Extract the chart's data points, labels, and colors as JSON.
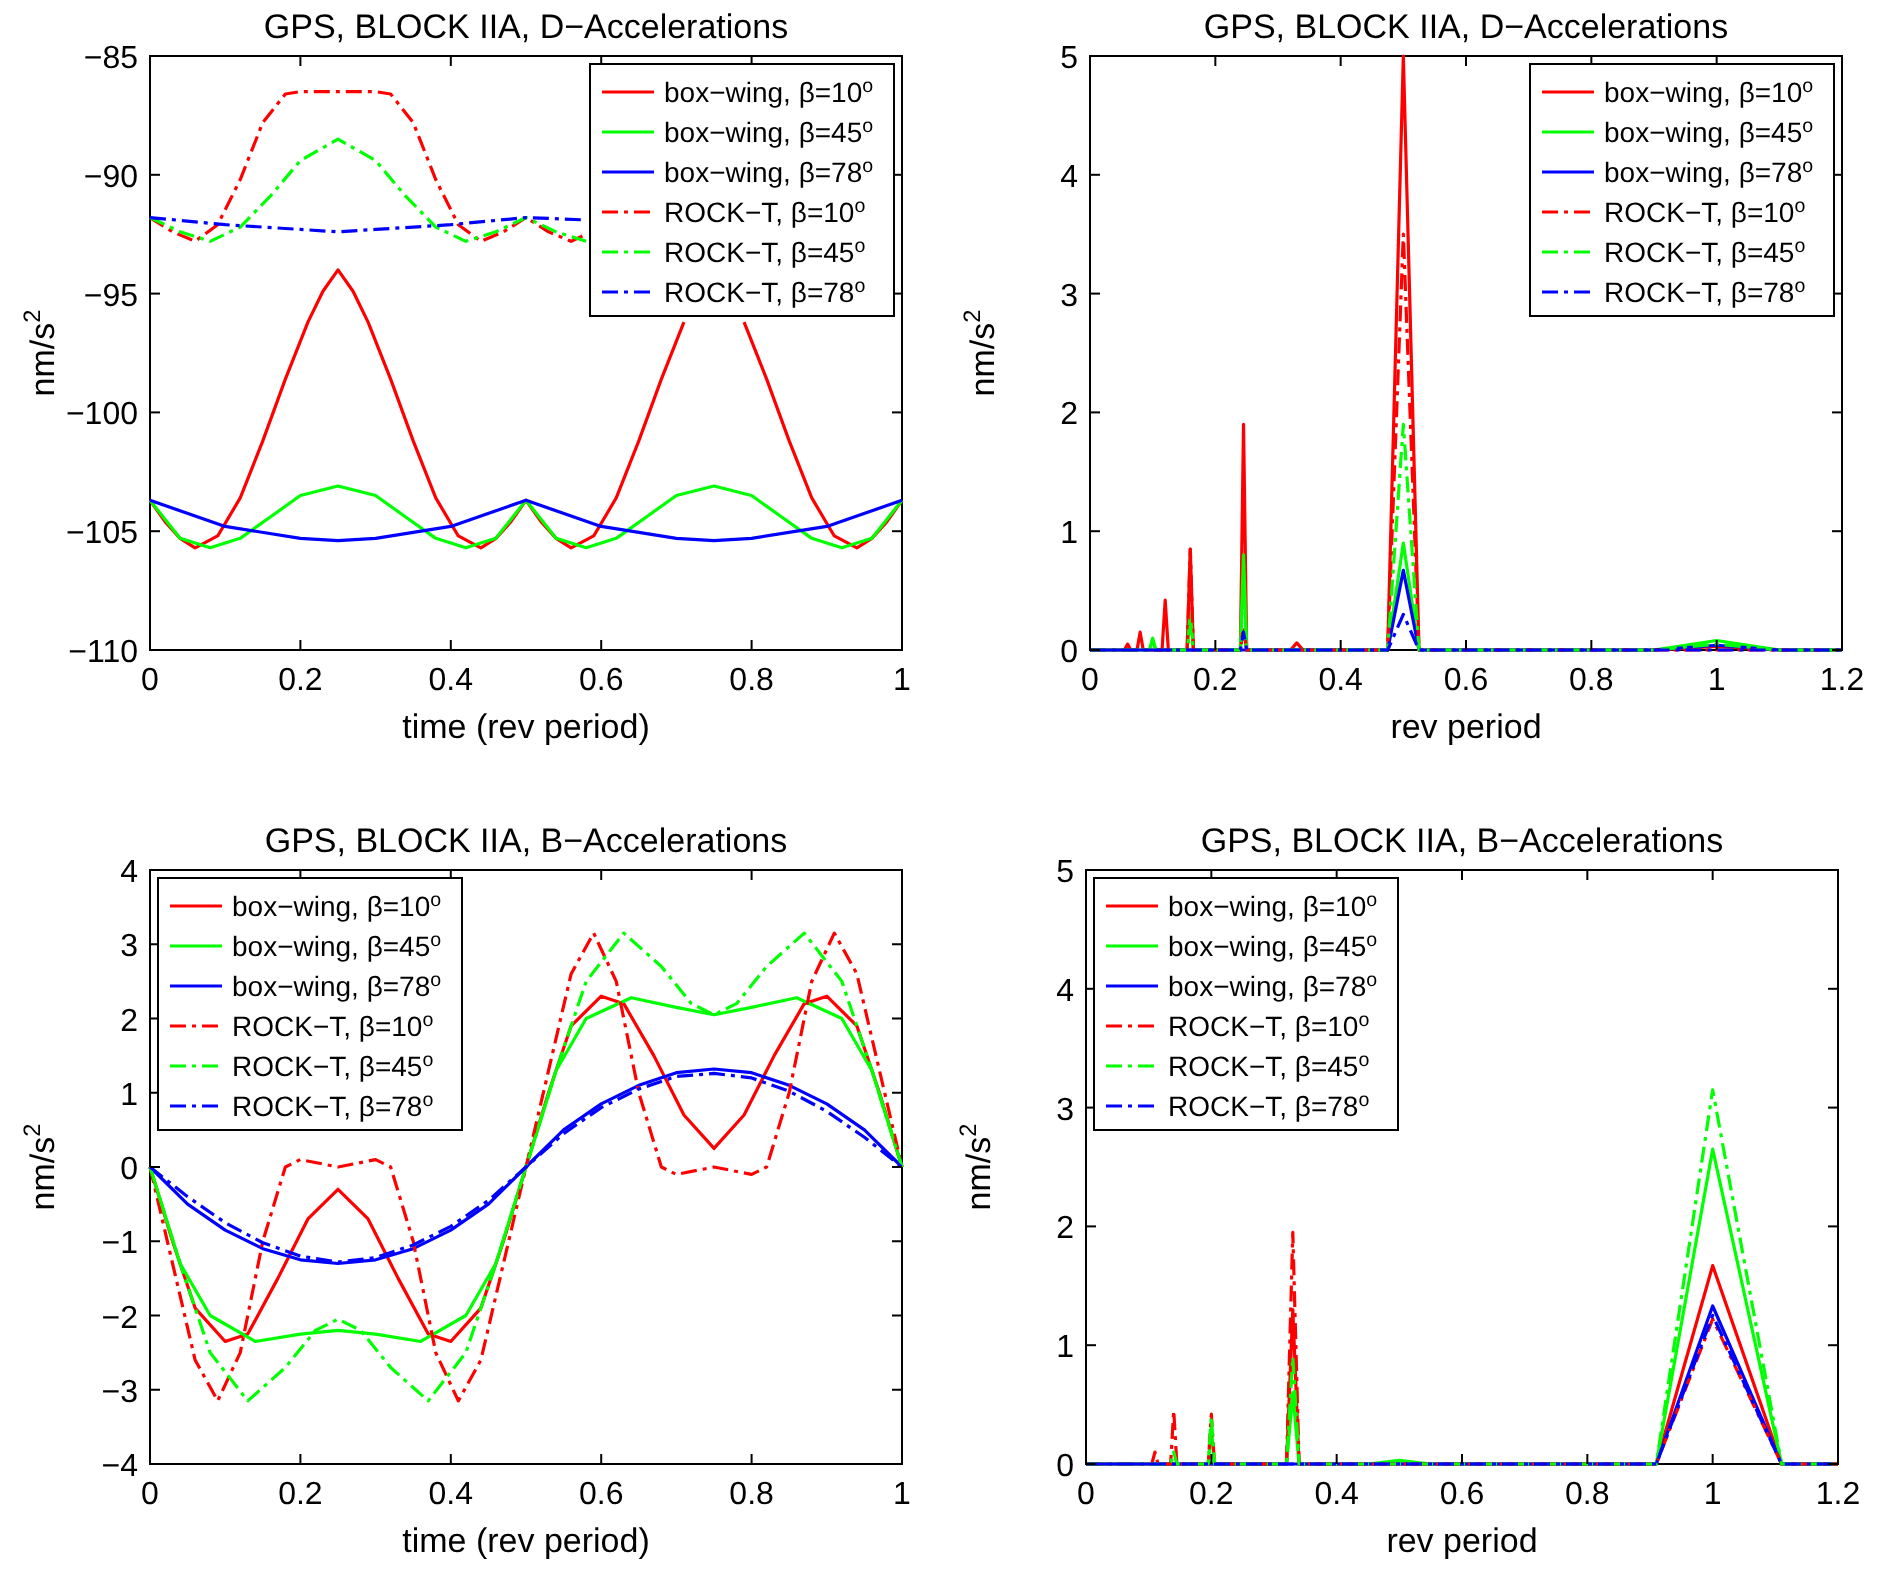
{
  "chart_data": [
    {
      "type": "line",
      "title": "GPS, BLOCK IIA, D−Accelerations",
      "xlabel": "time (rev period)",
      "ylabel": "nm/s$^{2}$",
      "xlim": [
        0,
        1
      ],
      "xticks": [
        0,
        0.2,
        0.4,
        0.6,
        0.8,
        1
      ],
      "ylim": [
        -110,
        -85
      ],
      "yticks": [
        -110,
        -105,
        -100,
        -95,
        -90,
        -85
      ],
      "legend": "top right",
      "grid": false,
      "series": [
        {
          "name": "box−wing, β=10$^{o}$",
          "color": "#ff0000",
          "line_style": "solid",
          "x": [
            0,
            0.02,
            0.04,
            0.06,
            0.09,
            0.12,
            0.15,
            0.18,
            0.21,
            0.23,
            0.25,
            0.27,
            0.29,
            0.32,
            0.35,
            0.38,
            0.41,
            0.44,
            0.46,
            0.48,
            0.5,
            0.52,
            0.54,
            0.56,
            0.59,
            0.62,
            0.65,
            0.68,
            0.71,
            0.73,
            0.75,
            0.77,
            0.79,
            0.82,
            0.85,
            0.88,
            0.91,
            0.94,
            0.96,
            0.98,
            1
          ],
          "values": [
            -103.7,
            -104.6,
            -105.3,
            -105.7,
            -105.2,
            -103.6,
            -101.2,
            -98.6,
            -96.2,
            -94.9,
            -94.0,
            -94.9,
            -96.2,
            -98.6,
            -101.2,
            -103.6,
            -105.2,
            -105.7,
            -105.3,
            -104.6,
            -103.7,
            -104.6,
            -105.3,
            -105.7,
            -105.2,
            -103.6,
            -101.2,
            -98.6,
            -96.2,
            null,
            null,
            null,
            -96.2,
            -98.6,
            -101.2,
            -103.6,
            -105.2,
            -105.7,
            -105.3,
            -104.6,
            -103.7
          ]
        },
        {
          "name": "box−wing, β=45$^{o}$",
          "color": "#00ff00",
          "line_style": "solid",
          "x": [
            0,
            0.04,
            0.08,
            0.12,
            0.16,
            0.2,
            0.25,
            0.3,
            0.34,
            0.38,
            0.42,
            0.46,
            0.5,
            0.54,
            0.58,
            0.62,
            0.66,
            0.7,
            0.75,
            0.8,
            0.84,
            0.88,
            0.92,
            0.96,
            1
          ],
          "values": [
            -103.7,
            -105.3,
            -105.7,
            -105.3,
            -104.4,
            -103.5,
            -103.1,
            -103.5,
            -104.4,
            -105.3,
            -105.7,
            -105.3,
            -103.7,
            -105.3,
            -105.7,
            -105.3,
            -104.4,
            -103.5,
            -103.1,
            -103.5,
            -104.4,
            -105.3,
            -105.7,
            -105.3,
            -103.7
          ]
        },
        {
          "name": "box−wing, β=78$^{o}$",
          "color": "#0000ff",
          "line_style": "solid",
          "x": [
            0,
            0.1,
            0.2,
            0.25,
            0.3,
            0.4,
            0.5,
            0.6,
            0.7,
            0.75,
            0.8,
            0.9,
            1
          ],
          "values": [
            -103.7,
            -104.8,
            -105.3,
            -105.4,
            -105.3,
            -104.8,
            -103.7,
            -104.8,
            -105.3,
            -105.4,
            -105.3,
            -104.8,
            -103.7
          ]
        },
        {
          "name": "ROCK−T, β=10$^{o}$",
          "color": "#ff0000",
          "line_style": "dashdot",
          "x": [
            0,
            0.03,
            0.06,
            0.09,
            0.12,
            0.15,
            0.18,
            0.2,
            0.25,
            0.3,
            0.32,
            0.35,
            0.38,
            0.41,
            0.44,
            0.47,
            0.5,
            0.53,
            0.56,
            0.58
          ],
          "values": [
            -91.8,
            -92.4,
            -92.8,
            -92.1,
            -90.2,
            -87.8,
            -86.6,
            -86.5,
            -86.5,
            -86.5,
            -86.6,
            -87.8,
            -90.2,
            -92.1,
            -92.8,
            -92.4,
            -91.8,
            -92.4,
            -92.8,
            -92.5
          ]
        },
        {
          "name": "ROCK−T, β=45$^{o}$",
          "color": "#00ff00",
          "line_style": "dashdot",
          "x": [
            0,
            0.04,
            0.08,
            0.12,
            0.16,
            0.2,
            0.25,
            0.3,
            0.34,
            0.38,
            0.42,
            0.46,
            0.5,
            0.54,
            0.58
          ],
          "values": [
            -91.8,
            -92.4,
            -92.8,
            -92.2,
            -90.9,
            -89.4,
            -88.5,
            -89.4,
            -90.9,
            -92.2,
            -92.8,
            -92.4,
            -91.8,
            -92.4,
            -92.8
          ]
        },
        {
          "name": "ROCK−T, β=78$^{o}$",
          "color": "#0000ff",
          "line_style": "dashdot",
          "x": [
            0,
            0.1,
            0.2,
            0.25,
            0.3,
            0.4,
            0.5,
            0.58
          ],
          "values": [
            -91.8,
            -92.1,
            -92.3,
            -92.4,
            -92.3,
            -92.1,
            -91.8,
            -91.9
          ]
        }
      ]
    },
    {
      "type": "line",
      "title": "GPS, BLOCK IIA, D−Accelerations",
      "xlabel": "rev period",
      "ylabel": "nm/s$^{2}$",
      "xlim": [
        0,
        1.2
      ],
      "xticks": [
        0,
        0.2,
        0.4,
        0.6,
        0.8,
        1,
        1.2
      ],
      "ylim": [
        0,
        5
      ],
      "yticks": [
        0,
        1,
        2,
        3,
        4,
        5
      ],
      "legend": "top right",
      "grid": false,
      "series": [
        {
          "name": "box−wing, β=10$^{o}$",
          "color": "#ff0000",
          "line_style": "solid",
          "x": [
            0,
            0.055,
            0.06,
            0.065,
            0.075,
            0.08,
            0.085,
            0.115,
            0.12,
            0.125,
            0.155,
            0.16,
            0.165,
            0.24,
            0.245,
            0.25,
            0.32,
            0.33,
            0.34,
            0.475,
            0.5,
            0.525,
            0.9,
            1,
            1.1,
            1.2
          ],
          "values": [
            0,
            0,
            0.05,
            0,
            0,
            0.15,
            0,
            0,
            0.42,
            0,
            0,
            0.85,
            0,
            0,
            1.9,
            0,
            0,
            0.06,
            0,
            0,
            5,
            0,
            0,
            0.03,
            0,
            0
          ]
        },
        {
          "name": "box−wing, β=45$^{o}$",
          "color": "#00ff00",
          "line_style": "solid",
          "x": [
            0,
            0.095,
            0.1,
            0.105,
            0.155,
            0.16,
            0.165,
            0.24,
            0.245,
            0.25,
            0.475,
            0.5,
            0.525,
            0.9,
            1,
            1.1,
            1.2
          ],
          "values": [
            0,
            0,
            0.1,
            0,
            0,
            0.3,
            0,
            0,
            0.8,
            0,
            0,
            0.9,
            0,
            0,
            0.08,
            0,
            0
          ]
        },
        {
          "name": "box−wing, β=78$^{o}$",
          "color": "#0000ff",
          "line_style": "solid",
          "x": [
            0,
            0.475,
            0.5,
            0.525,
            0.9,
            1,
            1.1,
            1.2
          ],
          "values": [
            0,
            0,
            0.67,
            0,
            0,
            0.04,
            0,
            0
          ]
        },
        {
          "name": "ROCK−T, β=10$^{o}$",
          "color": "#ff0000",
          "line_style": "dashdot",
          "x": [
            0,
            0.155,
            0.16,
            0.165,
            0.24,
            0.245,
            0.25,
            0.475,
            0.5,
            0.525,
            1.2
          ],
          "values": [
            0,
            0,
            0.85,
            0,
            0,
            0.2,
            0,
            0,
            3.5,
            0,
            0
          ]
        },
        {
          "name": "ROCK−T, β=45$^{o}$",
          "color": "#00ff00",
          "line_style": "dashdot",
          "x": [
            0,
            0.095,
            0.1,
            0.105,
            0.155,
            0.16,
            0.165,
            0.24,
            0.245,
            0.25,
            0.475,
            0.5,
            0.525,
            0.9,
            1,
            1.1,
            1.2
          ],
          "values": [
            0,
            0,
            0.08,
            0,
            0,
            0.2,
            0,
            0,
            0.6,
            0,
            0,
            1.9,
            0,
            0,
            0.05,
            0,
            0
          ]
        },
        {
          "name": "ROCK−T, β=78$^{o}$",
          "color": "#0000ff",
          "line_style": "dashdot",
          "x": [
            0,
            0.24,
            0.245,
            0.25,
            0.475,
            0.5,
            0.525,
            1.2
          ],
          "values": [
            0,
            0,
            0.15,
            0,
            0,
            0.3,
            0,
            0
          ]
        }
      ]
    },
    {
      "type": "line",
      "title": "GPS, BLOCK IIA, B−Accelerations",
      "xlabel": "time (rev period)",
      "ylabel": "nm/s$^{2}$",
      "xlim": [
        0,
        1
      ],
      "xticks": [
        0,
        0.2,
        0.4,
        0.6,
        0.8,
        1
      ],
      "ylim": [
        -4,
        4
      ],
      "yticks": [
        -4,
        -3,
        -2,
        -1,
        0,
        1,
        2,
        3,
        4
      ],
      "legend": "top left",
      "grid": false,
      "series": [
        {
          "name": "box−wing, β=10$^{o}$",
          "color": "#ff0000",
          "line_style": "solid",
          "x": [
            0,
            0.03,
            0.06,
            0.1,
            0.13,
            0.17,
            0.21,
            0.25,
            0.29,
            0.33,
            0.37,
            0.4,
            0.44,
            0.47,
            0.5,
            0.53,
            0.56,
            0.6,
            0.63,
            0.67,
            0.71,
            0.75,
            0.79,
            0.83,
            0.87,
            0.9,
            0.94,
            0.97,
            1
          ],
          "values": [
            0,
            -1.0,
            -1.9,
            -2.35,
            -2.25,
            -1.5,
            -0.7,
            -0.3,
            -0.7,
            -1.5,
            -2.25,
            -2.35,
            -1.9,
            -1.0,
            0,
            1.0,
            1.9,
            2.3,
            2.2,
            1.5,
            0.7,
            0.25,
            0.7,
            1.5,
            2.2,
            2.3,
            1.9,
            1.0,
            0
          ]
        },
        {
          "name": "box−wing, β=45$^{o}$",
          "color": "#00ff00",
          "line_style": "solid",
          "x": [
            0,
            0.04,
            0.08,
            0.14,
            0.2,
            0.25,
            0.3,
            0.36,
            0.42,
            0.46,
            0.5,
            0.54,
            0.58,
            0.64,
            0.7,
            0.75,
            0.8,
            0.86,
            0.92,
            0.96,
            1
          ],
          "values": [
            0,
            -1.3,
            -2.0,
            -2.35,
            -2.25,
            -2.2,
            -2.25,
            -2.35,
            -2.0,
            -1.3,
            0,
            1.3,
            2.0,
            2.28,
            2.15,
            2.05,
            2.15,
            2.28,
            2.0,
            1.3,
            0
          ]
        },
        {
          "name": "box−wing, β=78$^{o}$",
          "color": "#0000ff",
          "line_style": "solid",
          "x": [
            0,
            0.05,
            0.1,
            0.15,
            0.2,
            0.25,
            0.3,
            0.35,
            0.4,
            0.45,
            0.5,
            0.55,
            0.6,
            0.65,
            0.7,
            0.75,
            0.8,
            0.85,
            0.9,
            0.95,
            1
          ],
          "values": [
            0,
            -0.5,
            -0.85,
            -1.1,
            -1.25,
            -1.3,
            -1.25,
            -1.1,
            -0.85,
            -0.5,
            0,
            0.5,
            0.85,
            1.1,
            1.27,
            1.32,
            1.27,
            1.1,
            0.85,
            0.5,
            0
          ]
        },
        {
          "name": "ROCK−T, β=10$^{o}$",
          "color": "#ff0000",
          "line_style": "dashdot",
          "x": [
            0,
            0.03,
            0.06,
            0.09,
            0.12,
            0.15,
            0.18,
            0.2,
            0.25,
            0.3,
            0.32,
            0.35,
            0.38,
            0.41,
            0.44,
            0.47,
            0.5,
            0.53,
            0.56,
            0.59,
            0.62,
            0.65,
            0.68,
            0.7,
            0.75,
            0.8,
            0.82,
            0.85,
            0.88,
            0.91,
            0.94,
            0.97,
            1
          ],
          "values": [
            0,
            -1.3,
            -2.6,
            -3.15,
            -2.5,
            -1.0,
            0.0,
            0.1,
            0.0,
            0.1,
            0.0,
            -1.0,
            -2.5,
            -3.15,
            -2.6,
            -1.3,
            0,
            1.3,
            2.6,
            3.15,
            2.5,
            1.0,
            0.0,
            -0.1,
            0.0,
            -0.1,
            0.0,
            1.0,
            2.5,
            3.15,
            2.6,
            1.3,
            0
          ]
        },
        {
          "name": "ROCK−T, β=45$^{o}$",
          "color": "#00ff00",
          "line_style": "dashdot",
          "x": [
            0,
            0.04,
            0.08,
            0.13,
            0.18,
            0.22,
            0.25,
            0.28,
            0.32,
            0.37,
            0.42,
            0.46,
            0.5,
            0.54,
            0.58,
            0.63,
            0.68,
            0.72,
            0.75,
            0.78,
            0.82,
            0.87,
            0.92,
            0.96,
            1
          ],
          "values": [
            0,
            -1.3,
            -2.5,
            -3.15,
            -2.7,
            -2.2,
            -2.05,
            -2.2,
            -2.7,
            -3.15,
            -2.5,
            -1.3,
            0,
            1.3,
            2.5,
            3.15,
            2.7,
            2.2,
            2.05,
            2.2,
            2.7,
            3.15,
            2.5,
            1.3,
            0
          ]
        },
        {
          "name": "ROCK−T, β=78$^{o}$",
          "color": "#0000ff",
          "line_style": "dashdot",
          "x": [
            0,
            0.05,
            0.1,
            0.15,
            0.2,
            0.25,
            0.3,
            0.35,
            0.4,
            0.45,
            0.5,
            0.55,
            0.6,
            0.65,
            0.7,
            0.75,
            0.8,
            0.85,
            0.9,
            0.95,
            1
          ],
          "values": [
            0,
            -0.4,
            -0.75,
            -1.02,
            -1.2,
            -1.28,
            -1.22,
            -1.05,
            -0.8,
            -0.45,
            0,
            0.45,
            0.8,
            1.05,
            1.22,
            1.26,
            1.2,
            1.02,
            0.75,
            0.4,
            0
          ]
        }
      ]
    },
    {
      "type": "line",
      "title": "GPS, BLOCK IIA, B−Accelerations",
      "xlabel": "rev period",
      "ylabel": "nm/s$^{2}$",
      "xlim": [
        0,
        1.2
      ],
      "xticks": [
        0,
        0.2,
        0.4,
        0.6,
        0.8,
        1,
        1.2
      ],
      "ylim": [
        0,
        5
      ],
      "yticks": [
        0,
        1,
        2,
        3,
        4,
        5
      ],
      "legend": "top left",
      "grid": false,
      "series": [
        {
          "name": "box−wing, β=10$^{o}$",
          "color": "#ff0000",
          "line_style": "solid",
          "x": [
            0,
            0.32,
            0.33,
            0.34,
            0.91,
            1,
            1.11,
            1.2
          ],
          "values": [
            0,
            0,
            1.3,
            0,
            0,
            1.67,
            0,
            0
          ]
        },
        {
          "name": "box−wing, β=45$^{o}$",
          "color": "#00ff00",
          "line_style": "solid",
          "x": [
            0,
            0.195,
            0.2,
            0.205,
            0.32,
            0.33,
            0.34,
            0.45,
            0.5,
            0.55,
            0.91,
            1,
            1.11,
            1.2
          ],
          "values": [
            0,
            0,
            0.3,
            0,
            0,
            0.6,
            0,
            0,
            0.03,
            0,
            0,
            2.65,
            0,
            0
          ]
        },
        {
          "name": "box−wing, β=78$^{o}$",
          "color": "#0000ff",
          "line_style": "solid",
          "x": [
            0,
            0.91,
            1,
            1.11,
            1.2
          ],
          "values": [
            0,
            0,
            1.33,
            0,
            0
          ]
        },
        {
          "name": "ROCK−T, β=10$^{o}$",
          "color": "#ff0000",
          "line_style": "dashdot",
          "x": [
            0,
            0.105,
            0.11,
            0.115,
            0.135,
            0.14,
            0.145,
            0.195,
            0.2,
            0.205,
            0.32,
            0.33,
            0.34,
            0.91,
            1,
            1.11,
            1.2
          ],
          "values": [
            0,
            0,
            0.1,
            0,
            0,
            0.45,
            0,
            0,
            0.42,
            0,
            0,
            1.95,
            0,
            0,
            1.22,
            0,
            0
          ]
        },
        {
          "name": "ROCK−T, β=45$^{o}$",
          "color": "#00ff00",
          "line_style": "dashdot",
          "x": [
            0,
            0.135,
            0.14,
            0.145,
            0.195,
            0.2,
            0.205,
            0.32,
            0.33,
            0.34,
            0.91,
            1,
            1.11,
            1.2
          ],
          "values": [
            0,
            0,
            0.1,
            0,
            0,
            0.4,
            0,
            0,
            0.9,
            0,
            0,
            3.15,
            0,
            0
          ]
        },
        {
          "name": "ROCK−T, β=78$^{o}$",
          "color": "#0000ff",
          "line_style": "dashdot",
          "x": [
            0,
            0.91,
            1,
            1.11,
            1.2
          ],
          "values": [
            0,
            0,
            1.25,
            0,
            0
          ]
        }
      ]
    }
  ]
}
